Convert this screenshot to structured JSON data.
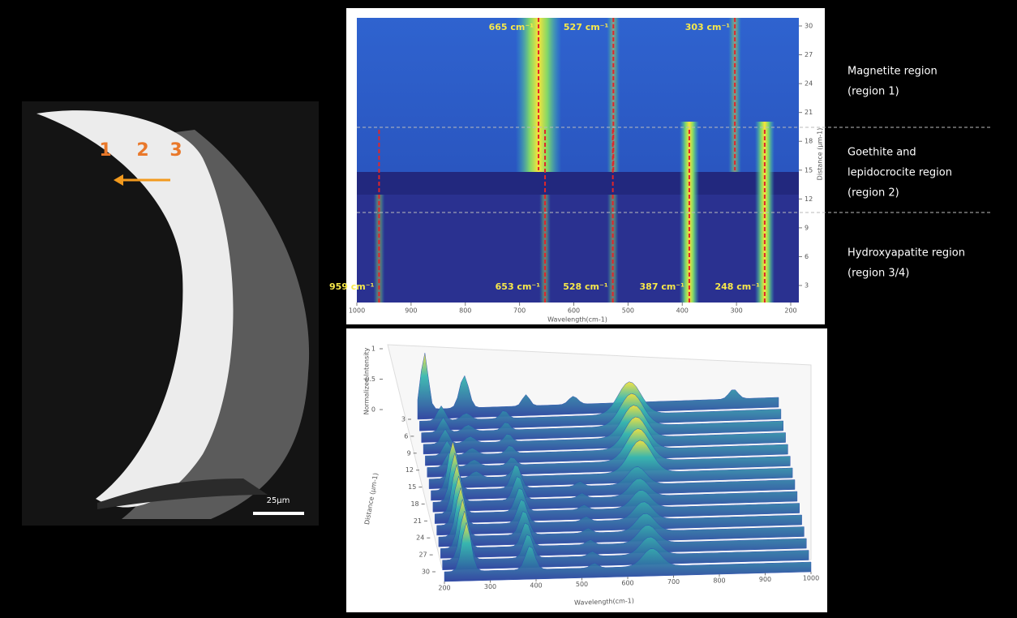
{
  "sem_image": {
    "markers": [
      "1",
      "2",
      "3"
    ],
    "scale_bar": "25μm"
  },
  "heatmap": {
    "x_ticks": [
      1000,
      900,
      800,
      700,
      600,
      500,
      400,
      300,
      200
    ],
    "y_ticks": [
      3,
      6,
      9,
      12,
      15,
      18,
      21,
      24,
      27,
      30
    ],
    "x_label": "Wavelength(cm-1)",
    "y_label": "Distance (μm-1)",
    "peaks_top": [
      {
        "wavenumber": 665,
        "label": "665 cm⁻¹"
      },
      {
        "wavenumber": 527,
        "label": "527 cm⁻¹"
      },
      {
        "wavenumber": 303,
        "label": "303 cm⁻¹"
      }
    ],
    "peaks_bottom": [
      {
        "wavenumber": 959,
        "label": "959 cm⁻¹"
      },
      {
        "wavenumber": 653,
        "label": "653 cm⁻¹"
      },
      {
        "wavenumber": 528,
        "label": "528 cm⁻¹"
      },
      {
        "wavenumber": 387,
        "label": "387 cm⁻¹"
      },
      {
        "wavenumber": 248,
        "label": "248 cm⁻¹"
      }
    ]
  },
  "regions": [
    {
      "lines": [
        "Magnetite region",
        "(region 1)"
      ]
    },
    {
      "lines": [
        "Goethite and",
        "lepidocrocite region",
        "(region 2)"
      ]
    },
    {
      "lines": [
        "Hydroxyapatite region",
        "(region 3/4)"
      ]
    }
  ],
  "surface_plot": {
    "x_ticks": [
      200,
      300,
      400,
      500,
      600,
      700,
      800,
      900,
      1000
    ],
    "y_ticks": [
      3,
      6,
      9,
      12,
      15,
      18,
      21,
      24,
      27,
      30
    ],
    "z_ticks": [
      1,
      0.5,
      0
    ],
    "x_label": "Wavelength(cm-1)",
    "y_label": "Distance (μm-1)",
    "z_label": "Normalized Intensity"
  }
}
